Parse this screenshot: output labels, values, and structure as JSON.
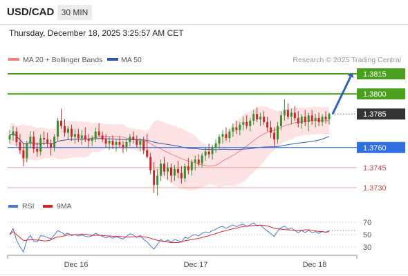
{
  "header": {
    "symbol": "USD/CAD",
    "timeframe": "30 MIN"
  },
  "timestamp": "Thursday, December 18, 2025 3:25:57 AM CET",
  "legend": {
    "ma20": "MA 20 + Bollinger Bands",
    "ma50": "MA 50",
    "rsi": "RSI",
    "ma9": "9MA"
  },
  "research_note": "Research © 2025 Trading Central",
  "colors": {
    "ma20": "#f08080",
    "ma50": "#2f5aa8",
    "bollinger_fill": "#fde0e0",
    "target": "#4aa01c",
    "pivot": "#2f6fe0",
    "support": "#d84040",
    "last": "#333333",
    "candle_up": "#3a8f2e",
    "candle_down": "#c62828",
    "rsi_line": "#4a78d0",
    "rsi_ma": "#e02020"
  },
  "chart_data": [
    {
      "type": "candlestick",
      "title": "",
      "x_tick_labels": [
        "Dec 16",
        "Dec 17",
        "Dec 18"
      ],
      "y_range": [
        1.372,
        1.383
      ],
      "price_levels": [
        {
          "value": 1.3815,
          "label": "1.3815",
          "role": "target"
        },
        {
          "value": 1.38,
          "label": "1.3800",
          "role": "target"
        },
        {
          "value": 1.3785,
          "label": "1.3785",
          "role": "last"
        },
        {
          "value": 1.376,
          "label": "1.3760",
          "role": "pivot"
        },
        {
          "value": 1.3745,
          "label": "1.3745",
          "role": "support"
        },
        {
          "value": 1.373,
          "label": "1.3730",
          "role": "support"
        }
      ],
      "last_price": 1.3785,
      "candles_ohlc": [
        [
          1.3766,
          1.3773,
          1.3763,
          1.3769
        ],
        [
          1.3769,
          1.3776,
          1.3765,
          1.3772
        ],
        [
          1.3772,
          1.3775,
          1.3761,
          1.3764
        ],
        [
          1.3764,
          1.377,
          1.3755,
          1.3758
        ],
        [
          1.3758,
          1.3763,
          1.3746,
          1.3752
        ],
        [
          1.3752,
          1.3765,
          1.3749,
          1.3763
        ],
        [
          1.3763,
          1.3772,
          1.376,
          1.3768
        ],
        [
          1.3768,
          1.3772,
          1.3756,
          1.3759
        ],
        [
          1.3759,
          1.3764,
          1.3753,
          1.3757
        ],
        [
          1.3757,
          1.377,
          1.3754,
          1.3767
        ],
        [
          1.3767,
          1.3772,
          1.3762,
          1.3766
        ],
        [
          1.3766,
          1.3771,
          1.376,
          1.3763
        ],
        [
          1.3763,
          1.3766,
          1.3754,
          1.376
        ],
        [
          1.376,
          1.377,
          1.3757,
          1.3768
        ],
        [
          1.3768,
          1.3782,
          1.3765,
          1.378
        ],
        [
          1.378,
          1.3789,
          1.3774,
          1.3776
        ],
        [
          1.3776,
          1.3781,
          1.3768,
          1.3771
        ],
        [
          1.3771,
          1.3776,
          1.3766,
          1.3774
        ],
        [
          1.3774,
          1.3777,
          1.3765,
          1.3768
        ],
        [
          1.3768,
          1.3774,
          1.3763,
          1.377
        ],
        [
          1.377,
          1.3774,
          1.3764,
          1.3767
        ],
        [
          1.3767,
          1.3773,
          1.3762,
          1.3769
        ],
        [
          1.3769,
          1.3775,
          1.3764,
          1.3766
        ],
        [
          1.3766,
          1.377,
          1.376,
          1.3765
        ],
        [
          1.3765,
          1.3769,
          1.3761,
          1.3767
        ],
        [
          1.3767,
          1.3775,
          1.3764,
          1.3772
        ],
        [
          1.3772,
          1.3778,
          1.3768,
          1.3769
        ],
        [
          1.3769,
          1.3772,
          1.3764,
          1.3766
        ],
        [
          1.3766,
          1.377,
          1.376,
          1.3763
        ],
        [
          1.3763,
          1.3768,
          1.3758,
          1.3765
        ],
        [
          1.3765,
          1.3769,
          1.3759,
          1.3762
        ],
        [
          1.3762,
          1.3766,
          1.3757,
          1.3764
        ],
        [
          1.3764,
          1.3768,
          1.376,
          1.3762
        ],
        [
          1.3762,
          1.3765,
          1.3756,
          1.376
        ],
        [
          1.376,
          1.3766,
          1.3757,
          1.3764
        ],
        [
          1.3764,
          1.377,
          1.3761,
          1.3768
        ],
        [
          1.3768,
          1.3772,
          1.3763,
          1.3766
        ],
        [
          1.3766,
          1.3769,
          1.376,
          1.3762
        ],
        [
          1.3762,
          1.3767,
          1.3757,
          1.3765
        ],
        [
          1.3765,
          1.3768,
          1.3755,
          1.3758
        ],
        [
          1.3758,
          1.377,
          1.3752,
          1.3753
        ],
        [
          1.3753,
          1.3756,
          1.374,
          1.3743
        ],
        [
          1.3743,
          1.3749,
          1.3726,
          1.3732
        ],
        [
          1.3732,
          1.3744,
          1.3724,
          1.3739
        ],
        [
          1.3739,
          1.3751,
          1.3735,
          1.3748
        ],
        [
          1.3748,
          1.3753,
          1.3739,
          1.3742
        ],
        [
          1.3742,
          1.3749,
          1.3736,
          1.3745
        ],
        [
          1.3745,
          1.3748,
          1.3734,
          1.3739
        ],
        [
          1.3739,
          1.3747,
          1.3735,
          1.3744
        ],
        [
          1.3744,
          1.375,
          1.3737,
          1.3741
        ],
        [
          1.3741,
          1.3746,
          1.3733,
          1.3737
        ],
        [
          1.3737,
          1.3748,
          1.3734,
          1.3746
        ],
        [
          1.3746,
          1.3752,
          1.374,
          1.3743
        ],
        [
          1.3743,
          1.3751,
          1.3739,
          1.3749
        ],
        [
          1.3749,
          1.3754,
          1.3743,
          1.3751
        ],
        [
          1.3751,
          1.3755,
          1.3746,
          1.3748
        ],
        [
          1.3748,
          1.3756,
          1.3745,
          1.3754
        ],
        [
          1.3754,
          1.376,
          1.375,
          1.3757
        ],
        [
          1.3757,
          1.3763,
          1.3752,
          1.3755
        ],
        [
          1.3755,
          1.3762,
          1.3751,
          1.376
        ],
        [
          1.376,
          1.3766,
          1.3756,
          1.3763
        ],
        [
          1.3763,
          1.377,
          1.3759,
          1.3768
        ],
        [
          1.3768,
          1.3773,
          1.3763,
          1.377
        ],
        [
          1.377,
          1.3775,
          1.3765,
          1.3767
        ],
        [
          1.3767,
          1.3774,
          1.3764,
          1.3772
        ],
        [
          1.3772,
          1.3778,
          1.3768,
          1.3775
        ],
        [
          1.3775,
          1.378,
          1.377,
          1.3773
        ],
        [
          1.3773,
          1.3779,
          1.3769,
          1.3777
        ],
        [
          1.3777,
          1.3783,
          1.3773,
          1.3779
        ],
        [
          1.3779,
          1.3784,
          1.3774,
          1.3776
        ],
        [
          1.3776,
          1.3782,
          1.3772,
          1.378
        ],
        [
          1.378,
          1.3788,
          1.3777,
          1.3785
        ],
        [
          1.3785,
          1.379,
          1.3779,
          1.3781
        ],
        [
          1.3781,
          1.3786,
          1.3776,
          1.3783
        ],
        [
          1.3783,
          1.3787,
          1.3777,
          1.3779
        ],
        [
          1.3779,
          1.3783,
          1.3772,
          1.3775
        ],
        [
          1.3775,
          1.378,
          1.3767,
          1.3771
        ],
        [
          1.3771,
          1.3775,
          1.3761,
          1.3766
        ],
        [
          1.3766,
          1.3779,
          1.3763,
          1.3776
        ],
        [
          1.3776,
          1.3787,
          1.3773,
          1.3784
        ],
        [
          1.3784,
          1.3796,
          1.378,
          1.3788
        ],
        [
          1.3788,
          1.3793,
          1.3781,
          1.3783
        ],
        [
          1.3783,
          1.3789,
          1.3777,
          1.3786
        ],
        [
          1.3786,
          1.3791,
          1.378,
          1.3782
        ],
        [
          1.3782,
          1.3787,
          1.3775,
          1.3778
        ],
        [
          1.3778,
          1.3785,
          1.3774,
          1.3783
        ],
        [
          1.3783,
          1.3788,
          1.3776,
          1.3779
        ],
        [
          1.3779,
          1.3786,
          1.3772,
          1.3784
        ],
        [
          1.3784,
          1.3788,
          1.3777,
          1.378
        ],
        [
          1.378,
          1.3785,
          1.3775,
          1.3782
        ],
        [
          1.3782,
          1.3786,
          1.3776,
          1.3779
        ],
        [
          1.3779,
          1.3785,
          1.3776,
          1.3783
        ],
        [
          1.3783,
          1.3787,
          1.3778,
          1.3781
        ],
        [
          1.3781,
          1.3786,
          1.3777,
          1.3785
        ]
      ],
      "projection_arrow": {
        "from": 1.3785,
        "to": 1.3815
      }
    },
    {
      "type": "line",
      "title": "",
      "series": [
        {
          "name": "RSI"
        },
        {
          "name": "9MA"
        }
      ],
      "y_ticks": [
        70,
        50,
        30
      ],
      "y_range": [
        20,
        80
      ],
      "x_tick_labels": [
        "Dec 16",
        "Dec 17",
        "Dec 18"
      ]
    }
  ]
}
